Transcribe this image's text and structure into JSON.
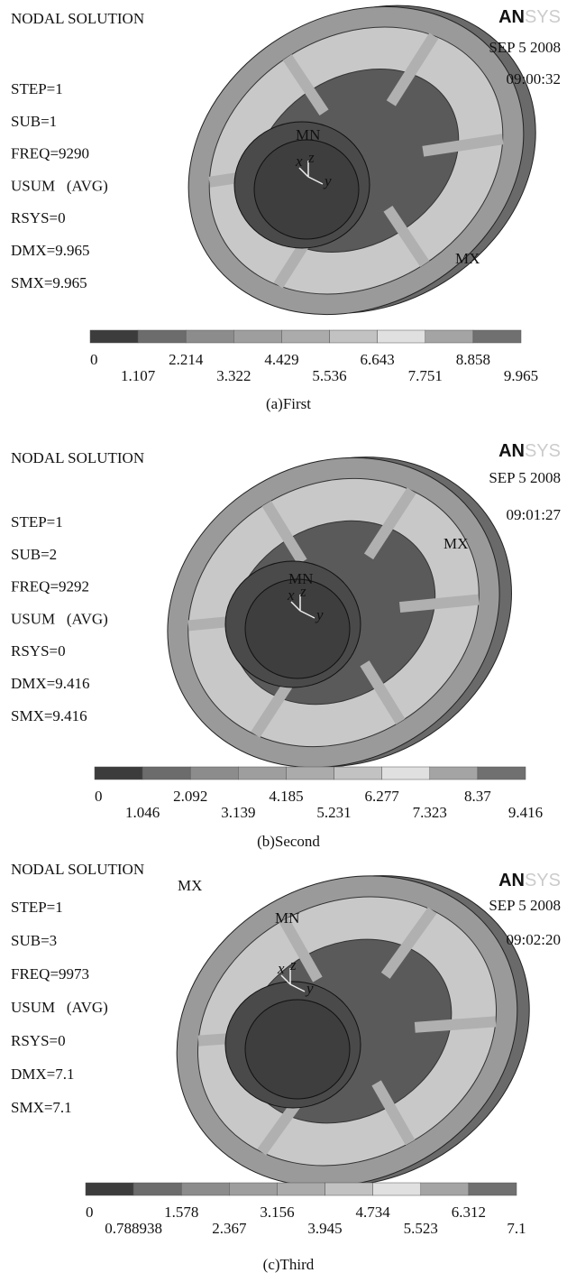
{
  "panels": [
    {
      "title": "NODAL SOLUTION",
      "logo_bold": "AN",
      "logo_light": "SYS",
      "date": "SEP 5 2008",
      "time": "09:00:32",
      "info": [
        "STEP=1",
        "SUB=1",
        "FREQ=9290",
        "USUM   (AVG)",
        "RSYS=0",
        "DMX=9.965",
        "SMX=9.965"
      ],
      "min_label": "MN",
      "max_label": "MX",
      "axes": [
        "x",
        "z",
        "y"
      ],
      "legend": [
        "0",
        "1.107",
        "2.214",
        "3.322",
        "4.429",
        "5.536",
        "6.643",
        "7.751",
        "8.858",
        "9.965"
      ],
      "caption": "(a)First"
    },
    {
      "title": "NODAL SOLUTION",
      "logo_bold": "AN",
      "logo_light": "SYS",
      "date": "SEP 5 2008",
      "time": "09:01:27",
      "info": [
        "STEP=1",
        "SUB=2",
        "FREQ=9292",
        "USUM   (AVG)",
        "RSYS=0",
        "DMX=9.416",
        "SMX=9.416"
      ],
      "min_label": "MN",
      "max_label": "MX",
      "axes": [
        "x",
        "z",
        "y"
      ],
      "legend": [
        "0",
        "1.046",
        "2.092",
        "3.139",
        "4.185",
        "5.231",
        "6.277",
        "7.323",
        "8.37",
        "9.416"
      ],
      "caption": "(b)Second"
    },
    {
      "title": "NODAL SOLUTION",
      "logo_bold": "AN",
      "logo_light": "SYS",
      "date": "SEP 5 2008",
      "time": "09:02:20",
      "info": [
        "STEP=1",
        "SUB=3",
        "FREQ=9973",
        "USUM   (AVG)",
        "RSYS=0",
        "DMX=7.1",
        "SMX=7.1"
      ],
      "min_label": "MN",
      "max_label": "MX",
      "axes": [
        "x",
        "z",
        "y"
      ],
      "legend": [
        "0",
        "0.788938",
        "1.578",
        "2.367",
        "3.156",
        "3.945",
        "4.734",
        "5.523",
        "6.312",
        "7.1"
      ],
      "caption": "(c)Third"
    }
  ]
}
